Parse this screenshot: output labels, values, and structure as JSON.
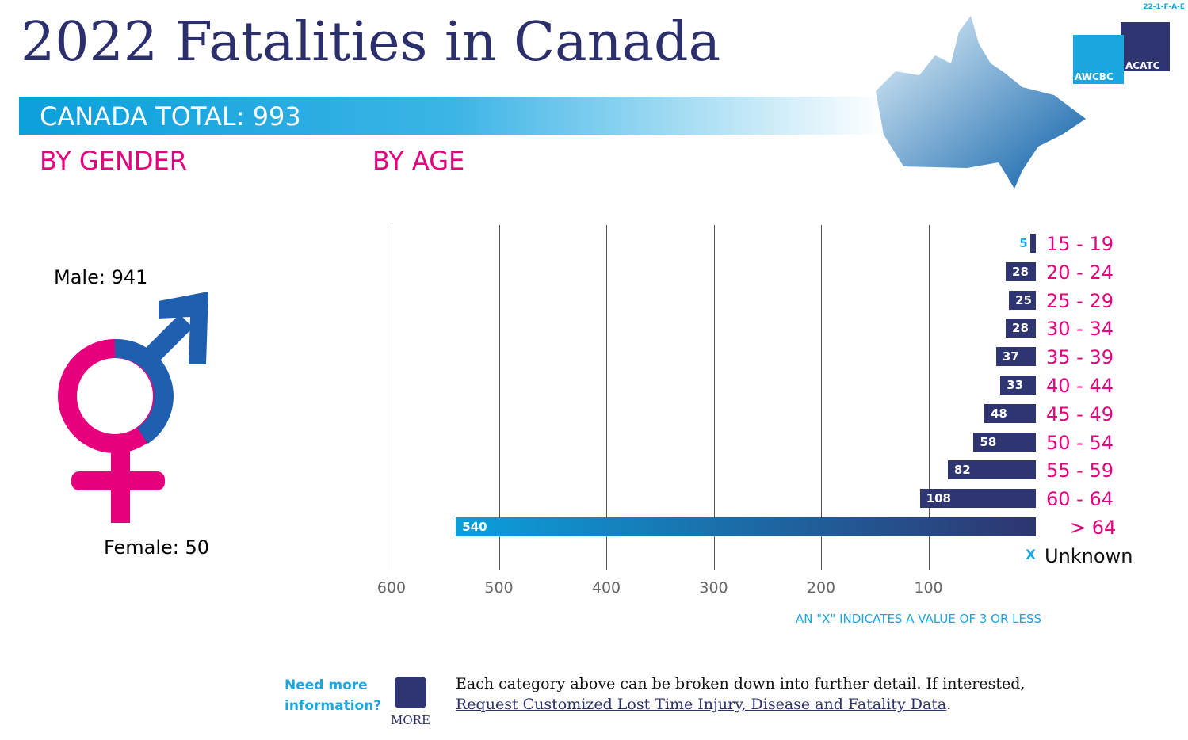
{
  "code": "22-1-F-A-E",
  "title": "2022 Fatalities in Canada",
  "total": "CANADA TOTAL: 993",
  "by_gender": "BY GENDER",
  "by_age": "BY AGE",
  "logo": {
    "left": "AWCBC",
    "right": "ACATC"
  },
  "gender": {
    "male": "Male: 941",
    "female": "Female: 50",
    "male_color": "#1f5fb0",
    "female_color": "#e6007e"
  },
  "footnote": "AN \"X\" INDICATES A VALUE OF 3 OR LESS",
  "footer": {
    "need": "Need more",
    "info": "information?",
    "more": "MORE",
    "text": "Each category above can be broken down into further detail. If interested,",
    "link": "Request Customized Lost Time Injury, Disease and Fatality Data",
    "period": "."
  },
  "chart_data": {
    "type": "bar",
    "orientation": "horizontal",
    "xaxis_reversed": true,
    "categories": [
      "15 - 19",
      "20 - 24",
      "25 - 29",
      "30 - 34",
      "35 - 39",
      "40 - 44",
      "45 - 49",
      "50 - 54",
      "55 - 59",
      "60 - 64",
      "> 64",
      "Unknown"
    ],
    "values": [
      5,
      28,
      25,
      28,
      37,
      33,
      48,
      58,
      82,
      108,
      540,
      null
    ],
    "labels": [
      "5",
      "28",
      "25",
      "28",
      "37",
      "33",
      "48",
      "58",
      "82",
      "108",
      "540",
      "X"
    ],
    "xticks": [
      "600",
      "500",
      "400",
      "300",
      "200",
      "100"
    ],
    "xlim": [
      0,
      600
    ],
    "grid": true,
    "colors": {
      "bar": "#2e3570",
      "highlight": "#0aa0dc",
      "label": "#e6007e"
    }
  }
}
